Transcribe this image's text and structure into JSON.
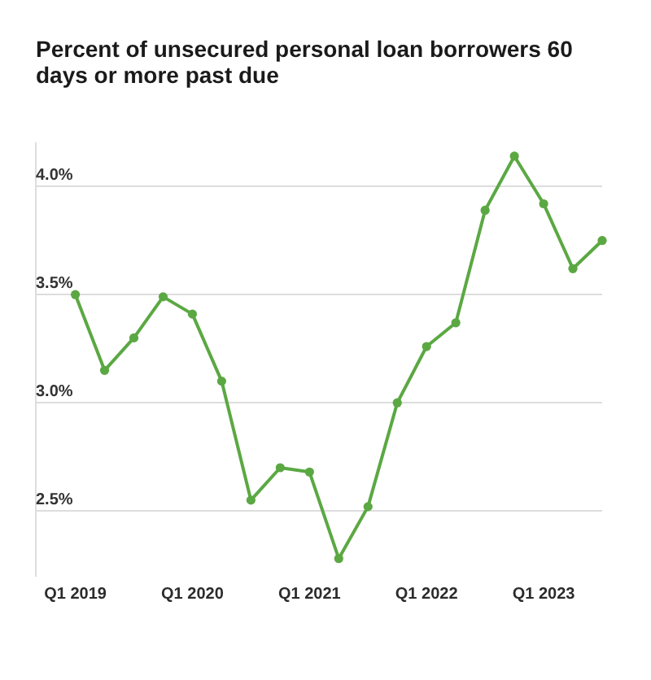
{
  "chart_data": {
    "type": "line",
    "title": "Percent of unsecured personal loan borrowers 60 days or more past due",
    "categories": [
      "Q1 2019",
      null,
      null,
      null,
      "Q1 2020",
      null,
      null,
      null,
      "Q1 2021",
      null,
      null,
      null,
      "Q1 2022",
      null,
      null,
      null,
      "Q1 2023",
      null,
      null
    ],
    "series": [
      {
        "color": "#5ba843",
        "values": [
          3.5,
          3.15,
          3.3,
          3.49,
          3.41,
          3.1,
          2.55,
          2.7,
          2.68,
          2.28,
          2.52,
          3.0,
          3.26,
          3.37,
          3.89,
          4.14,
          3.92,
          3.62,
          3.75
        ]
      }
    ],
    "ylim": [
      2.2,
      4.2
    ],
    "yticks": [
      {
        "value": 2.5,
        "label": "2.5%"
      },
      {
        "value": 3.0,
        "label": "3.0%"
      },
      {
        "value": 3.5,
        "label": "3.5%"
      },
      {
        "value": 4.0,
        "label": "4.0%"
      }
    ],
    "grid": "y",
    "legend": false,
    "marker": "circle",
    "line_style": "solid"
  }
}
